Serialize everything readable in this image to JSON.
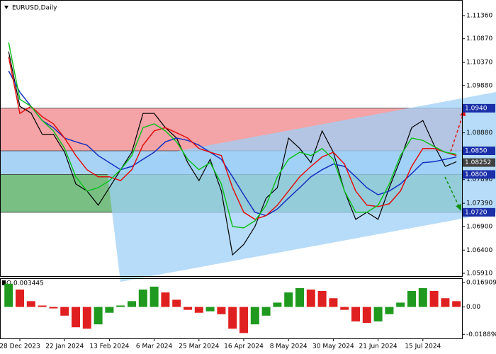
{
  "chart_data": [
    {
      "type": "line",
      "title": "EURUSD,Daily",
      "categories": [
        null,
        "28 Dec 2023",
        null,
        null,
        null,
        "22 Jan 2024",
        null,
        null,
        null,
        "13 Feb 2024",
        null,
        null,
        null,
        "6 Mar 2024",
        null,
        null,
        null,
        "25 Mar 2024",
        null,
        null,
        null,
        "16 Apr 2024",
        null,
        null,
        null,
        "8 May 2024",
        null,
        null,
        null,
        "30 May 2024",
        null,
        null,
        null,
        "21 Jun 2024",
        null,
        null,
        null,
        "15 Jul 2024",
        null,
        null,
        null
      ],
      "series": [
        {
          "color": "#000000",
          "values": [
            1.106,
            1.0944,
            1.093,
            1.0885,
            1.0885,
            1.0847,
            1.078,
            1.0765,
            1.0735,
            1.0772,
            1.081,
            1.0847,
            1.0929,
            1.0929,
            1.0899,
            1.0877,
            1.0825,
            1.0787,
            1.0832,
            1.0765,
            1.063,
            1.0652,
            1.069,
            1.075,
            1.0772,
            1.0877,
            1.0855,
            1.0825,
            1.0892,
            1.0847,
            1.0765,
            1.0705,
            1.072,
            1.0705,
            1.0772,
            1.0832,
            1.0899,
            1.0914,
            1.0862,
            1.0817,
            1.0827
          ]
        },
        {
          "color": "#1530c0",
          "values": [
            1.1019,
            1.0974,
            1.0944,
            1.0914,
            1.0899,
            1.0877,
            1.0869,
            1.0862,
            1.084,
            1.0825,
            1.081,
            1.0817,
            1.0832,
            1.0847,
            1.0869,
            1.0877,
            1.0872,
            1.0862,
            1.0847,
            1.0832,
            1.0795,
            1.0757,
            1.072,
            1.0713,
            1.0727,
            1.075,
            1.0772,
            1.0795,
            1.081,
            1.0822,
            1.0817,
            1.0795,
            1.0772,
            1.0757,
            1.0765,
            1.078,
            1.0802,
            1.0825,
            1.0827,
            1.0832,
            1.0837
          ]
        },
        {
          "color": "#e01010",
          "values": [
            1.1049,
            1.0929,
            1.0944,
            1.0922,
            1.0907,
            1.0877,
            1.084,
            1.081,
            1.0795,
            1.0795,
            1.0787,
            1.081,
            1.0862,
            1.0892,
            1.0899,
            1.0888,
            1.0877,
            1.0855,
            1.0847,
            1.084,
            1.0772,
            1.072,
            1.0705,
            1.0713,
            1.0735,
            1.0765,
            1.0795,
            1.0817,
            1.0837,
            1.0847,
            1.0822,
            1.0765,
            1.0735,
            1.0732,
            1.0738,
            1.0765,
            1.0817,
            1.0855,
            1.0855,
            1.0847,
            1.084
          ]
        },
        {
          "color": "#10c020",
          "values": [
            1.1079,
            1.0959,
            1.0944,
            1.0914,
            1.0892,
            1.0855,
            1.0795,
            1.0765,
            1.0772,
            1.0787,
            1.081,
            1.084,
            1.0899,
            1.0907,
            1.0892,
            1.0869,
            1.0832,
            1.081,
            1.0825,
            1.078,
            1.069,
            1.0687,
            1.0702,
            1.0735,
            1.0795,
            1.0832,
            1.0847,
            1.084,
            1.0855,
            1.0832,
            1.0765,
            1.072,
            1.072,
            1.0735,
            1.078,
            1.084,
            1.0877,
            1.0872,
            1.0859,
            1.0847,
            1.0843
          ]
        }
      ],
      "ylim": [
        1.0585,
        1.11689
      ],
      "yticks": [
        {
          "value": 1.1136,
          "label": "1.11360"
        },
        {
          "value": 1.1087,
          "label": "1.10870"
        },
        {
          "value": 1.1037,
          "label": "1.10370"
        },
        {
          "value": 1.0988,
          "label": "1.09880"
        },
        {
          "value": 1.0888,
          "label": "1.08880"
        },
        {
          "value": 1.0789,
          "label": "1.07890"
        },
        {
          "value": 1.0739,
          "label": "1.07390"
        },
        {
          "value": 1.069,
          "label": "1.06900"
        },
        {
          "value": 1.064,
          "label": "1.06400"
        },
        {
          "value": 1.0591,
          "label": "1.05910"
        }
      ],
      "levels": [
        {
          "value": 1.094,
          "label": "1.0940"
        },
        {
          "value": 1.085,
          "label": "1.0850"
        },
        {
          "value": 1.08,
          "label": "1.0800"
        },
        {
          "value": 1.072,
          "label": "1.0720"
        }
      ],
      "zone_colors": [
        "#f4a3a6",
        "#a9d3f5",
        "#79bf83"
      ],
      "level_color": "#1a2fa8",
      "last_price": 1.08252
    },
    {
      "type": "bar",
      "title": "O 0.003445",
      "values": [
        0.016,
        0.012,
        0.004,
        0.001,
        -0.001,
        -0.006,
        -0.014,
        -0.015,
        -0.012,
        -0.004,
        0.001,
        0.004,
        0.012,
        0.014,
        0.01,
        0.005,
        -0.002,
        -0.004,
        -0.003,
        -0.005,
        -0.015,
        -0.018,
        -0.012,
        -0.006,
        0.003,
        0.01,
        0.013,
        0.012,
        0.011,
        0.006,
        -0.002,
        -0.01,
        -0.011,
        -0.01,
        -0.005,
        0.003,
        0.011,
        0.013,
        0.011,
        0.006,
        0.004
      ],
      "up_color": "#1f9a1f",
      "down_color": "#e02020",
      "ylim": [
        -0.0217,
        0.0193
      ],
      "yticks": [
        0.016909,
        {
          "value": 0,
          "label": "0.00"
        },
        -0.018898
      ]
    }
  ]
}
